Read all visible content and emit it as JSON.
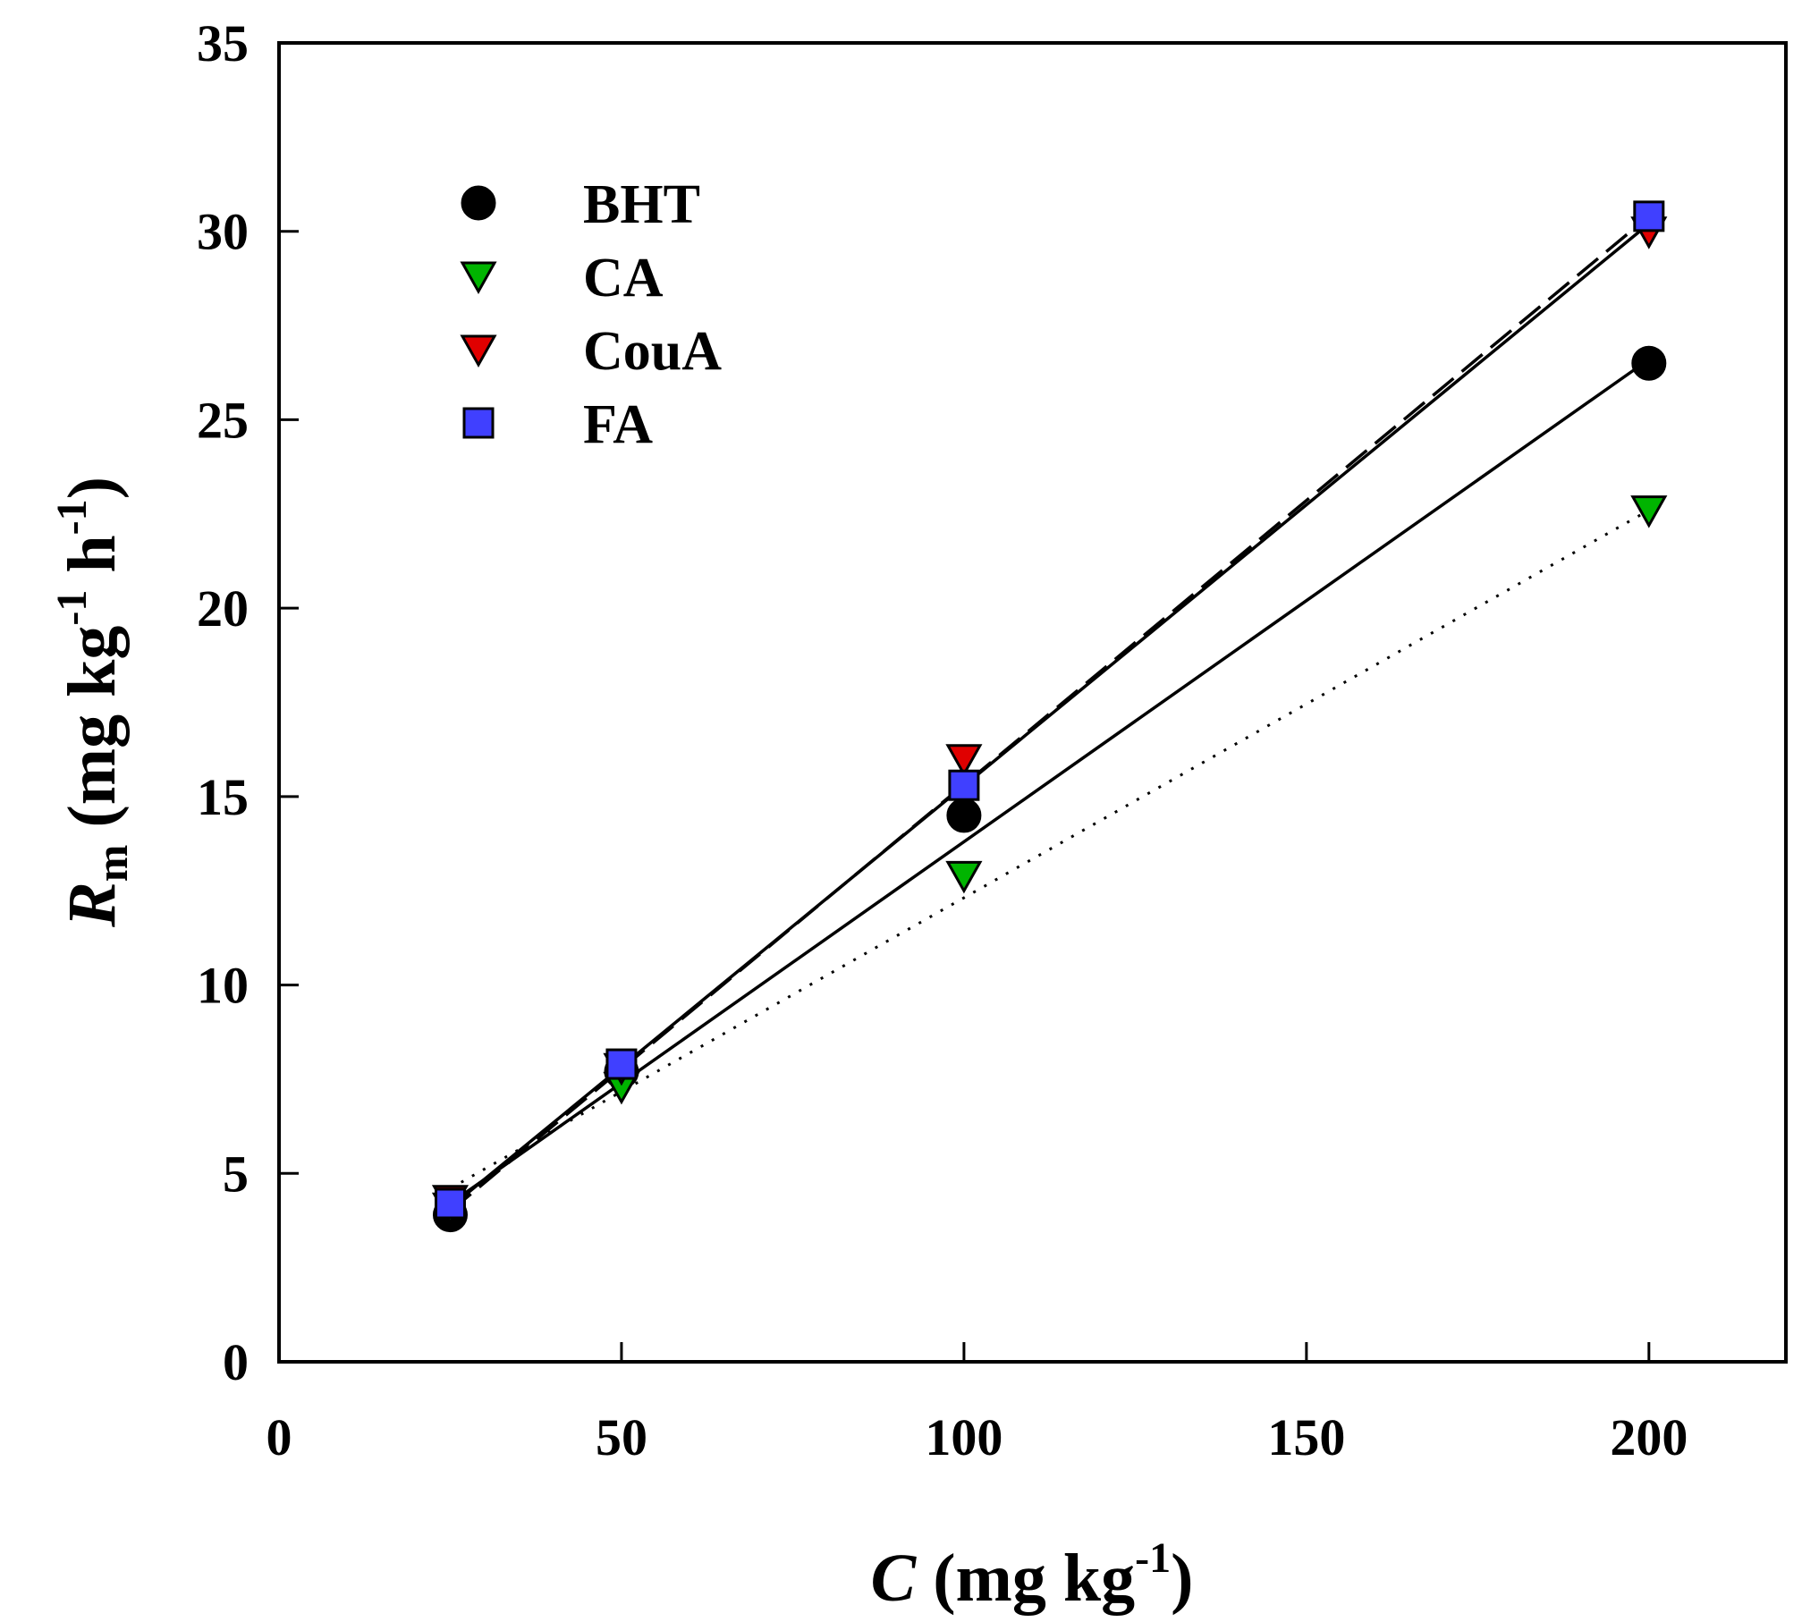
{
  "chart_data": {
    "type": "scatter",
    "title": "",
    "xlabel": {
      "var": "C",
      "unit": " (mg kg",
      "sup": "-1",
      "close": ")"
    },
    "ylabel": {
      "var": "R",
      "sub": "m",
      "unit": " (mg kg",
      "sup1": "-1",
      "mid": " h",
      "sup2": "-1",
      "close": ")"
    },
    "xlim": [
      0,
      220
    ],
    "ylim": [
      0,
      35
    ],
    "xticks": [
      0,
      50,
      100,
      150,
      200
    ],
    "yticks": [
      0,
      5,
      10,
      15,
      20,
      25,
      30,
      35
    ],
    "xtick_labels": [
      "0",
      "50",
      "100",
      "150",
      "200"
    ],
    "ytick_labels": [
      "0",
      "5",
      "10",
      "15",
      "20",
      "25",
      "30",
      "35"
    ],
    "legend_position": "top-left",
    "series": [
      {
        "name": "BHT",
        "marker": "circle",
        "color": "#000000",
        "x": [
          25,
          50,
          100,
          200
        ],
        "y": [
          3.9,
          7.7,
          14.5,
          26.5
        ],
        "fit": {
          "style": "solid",
          "x": [
            25,
            200
          ],
          "y": [
            4.2,
            26.6
          ]
        }
      },
      {
        "name": "CA",
        "marker": "triangle-down",
        "color": "#00b400",
        "x": [
          25,
          50,
          100,
          200
        ],
        "y": [
          4.1,
          7.3,
          12.9,
          22.6
        ],
        "fit": {
          "style": "dotted",
          "x": [
            25,
            200
          ],
          "y": [
            4.6,
            22.6
          ]
        }
      },
      {
        "name": "CouA",
        "marker": "triangle-down",
        "color": "#e00000",
        "x": [
          25,
          50,
          100,
          200
        ],
        "y": [
          4.3,
          7.8,
          16.0,
          30.0
        ],
        "fit": {
          "style": "dashed",
          "x": [
            25,
            200
          ],
          "y": [
            4.0,
            30.4
          ]
        }
      },
      {
        "name": "FA",
        "marker": "square",
        "color": "#4040ff",
        "x": [
          25,
          50,
          100,
          200
        ],
        "y": [
          4.2,
          7.9,
          15.3,
          30.4
        ],
        "fit": {
          "style": "solid",
          "x": [
            25,
            200
          ],
          "y": [
            4.1,
            30.2
          ]
        }
      }
    ]
  }
}
